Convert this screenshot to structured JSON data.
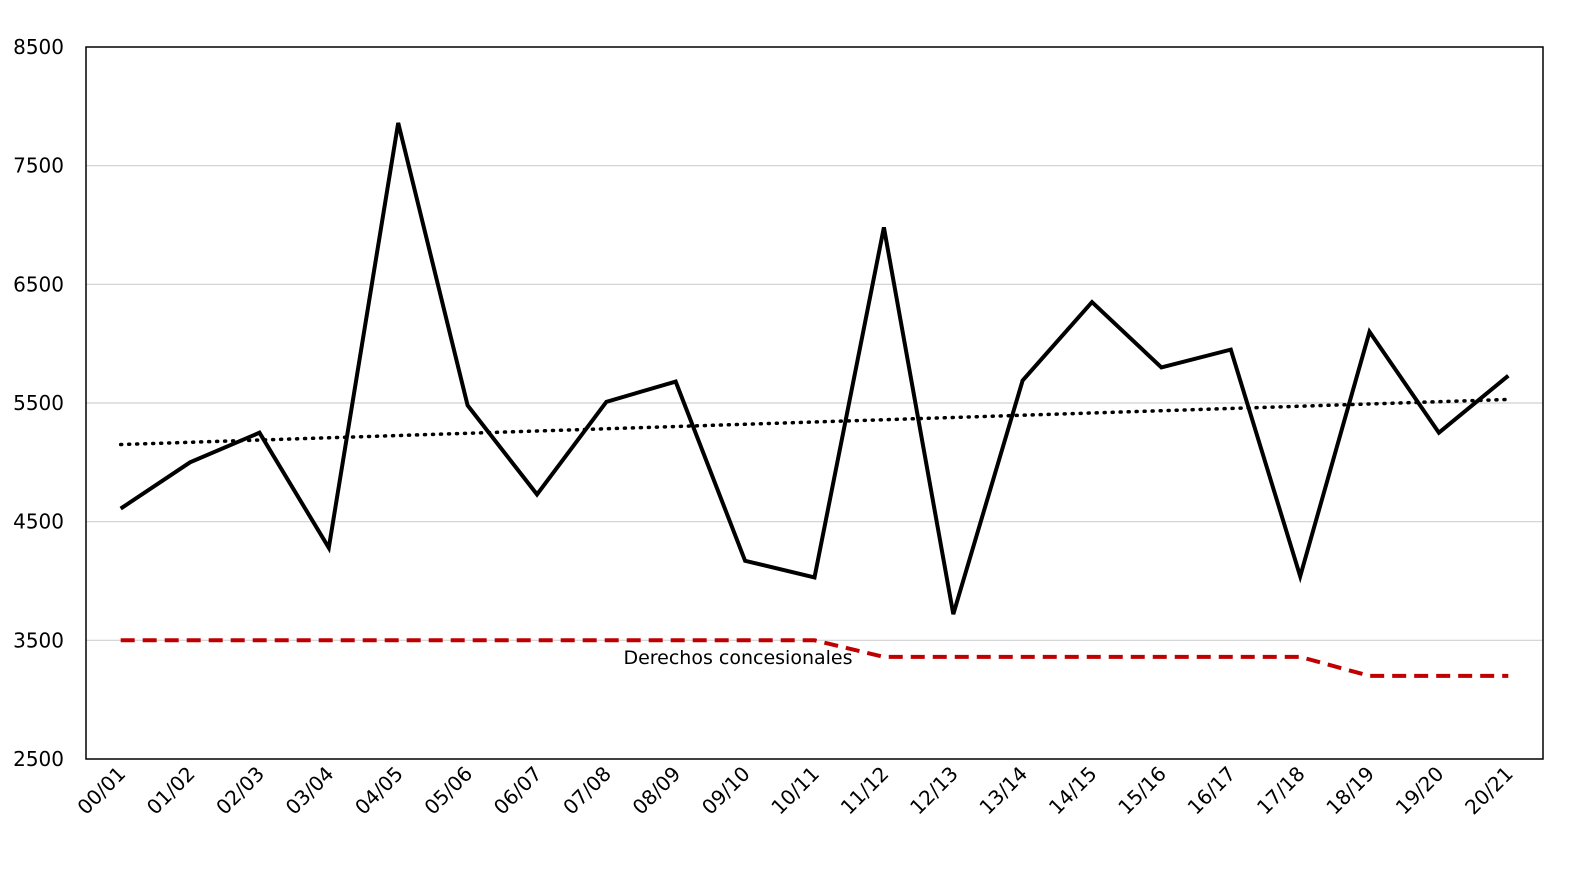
{
  "chart_data": {
    "type": "line",
    "title": "",
    "xlabel": "",
    "ylabel": "",
    "categories": [
      "00/01",
      "01/02",
      "02/03",
      "03/04",
      "04/05",
      "05/06",
      "06/07",
      "07/08",
      "08/09",
      "09/10",
      "10/11",
      "11/12",
      "12/13",
      "13/14",
      "14/15",
      "15/16",
      "16/17",
      "17/18",
      "18/19",
      "19/20",
      "20/21"
    ],
    "ylim": [
      2500,
      8500
    ],
    "yticks": [
      2500,
      3500,
      4500,
      5500,
      6500,
      7500,
      8500
    ],
    "grid": true,
    "legend": "none",
    "series": [
      {
        "values": [
          4610,
          5000,
          5250,
          4280,
          7860,
          5480,
          4730,
          5510,
          5680,
          4170,
          4030,
          6980,
          3720,
          5690,
          6350,
          5800,
          5950,
          4040,
          6100,
          5250,
          5730
        ],
        "color": "#000000",
        "style": "solid"
      },
      {
        "trend_start": 5150,
        "trend_end": 5530,
        "color": "#000000",
        "style": "dotted"
      },
      {
        "name": "Derechos concesionales",
        "values": [
          3500,
          3500,
          3500,
          3500,
          3500,
          3500,
          3500,
          3500,
          3500,
          3500,
          3500,
          3360,
          3360,
          3360,
          3360,
          3360,
          3360,
          3360,
          3200,
          3200,
          3200
        ],
        "color": "#c00000",
        "style": "dashed"
      }
    ],
    "annotations": [
      {
        "text": "Derechos concesionales",
        "near_category": "10/11",
        "near_value": 3360
      }
    ]
  }
}
